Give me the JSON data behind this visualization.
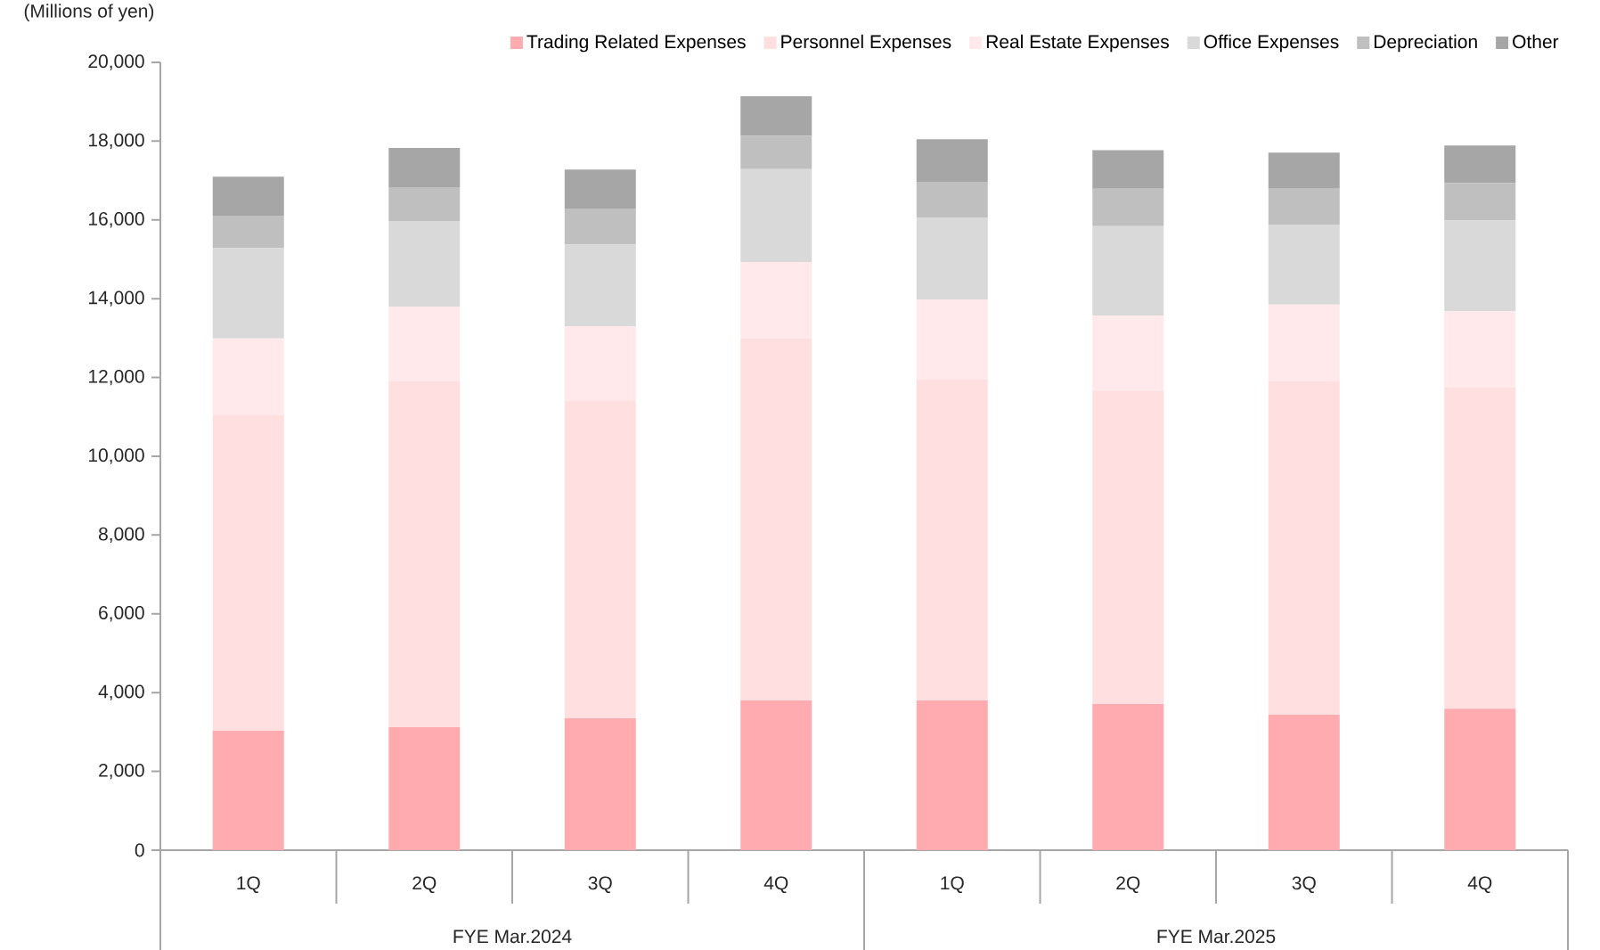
{
  "chart_data": {
    "type": "bar",
    "stacked": true,
    "ylabel": "(Millions of yen)",
    "categories": [
      "1Q",
      "2Q",
      "3Q",
      "4Q",
      "1Q",
      "2Q",
      "3Q",
      "4Q"
    ],
    "annotations": [
      "FYE Mar.2024",
      "FYE Mar.2025"
    ],
    "series": [
      {
        "name": "Trading Related Expenses",
        "color": "#ffabaf",
        "values": [
          3030,
          3120,
          3350,
          3800,
          3800,
          3710,
          3440,
          3590
        ]
      },
      {
        "name": "Personnel Expenses",
        "color": "#ffdfe0",
        "values": [
          8010,
          8780,
          8050,
          9190,
          8150,
          7960,
          8460,
          8160
        ]
      },
      {
        "name": "Real Estate Expenses",
        "color": "#ffe9ea",
        "values": [
          1950,
          1900,
          1900,
          1940,
          2030,
          1900,
          1950,
          1930
        ]
      },
      {
        "name": "Office Expenses",
        "color": "#d9d9d9",
        "values": [
          2300,
          2170,
          2080,
          2360,
          2080,
          2270,
          2030,
          2310
        ]
      },
      {
        "name": "Depreciation",
        "color": "#bfbfbf",
        "values": [
          820,
          860,
          910,
          850,
          910,
          950,
          910,
          950
        ]
      },
      {
        "name": "Other",
        "color": "#a6a6a6",
        "values": [
          990,
          1000,
          990,
          1000,
          1080,
          980,
          920,
          950
        ]
      }
    ],
    "ylim": [
      0,
      20000
    ],
    "yticks": [
      0,
      {
        "value": 2000,
        "label": "2,000"
      },
      {
        "value": 4000,
        "label": "4,000"
      },
      {
        "value": 6000,
        "label": "6,000"
      },
      {
        "value": 8000,
        "label": "8,000"
      },
      {
        "value": 10000,
        "label": "10,000"
      },
      {
        "value": 12000,
        "label": "12,000"
      },
      {
        "value": 14000,
        "label": "14,000"
      },
      {
        "value": 16000,
        "label": "16,000"
      },
      {
        "value": 18000,
        "label": "18,000"
      },
      {
        "value": 20000,
        "label": "20,000"
      }
    ],
    "grid": false,
    "legend": "top"
  }
}
